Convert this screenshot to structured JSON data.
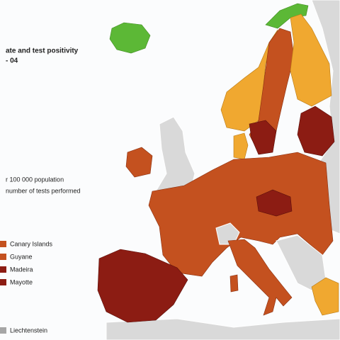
{
  "title": "ate and test positivity",
  "subtitle": "- 04",
  "legend": {
    "notes": [
      "r 100 000 population",
      "number of tests performed"
    ],
    "regions": [
      "Canary Islands",
      "Guyane",
      "Madeira",
      "Mayotte"
    ],
    "other": "Liechtenstein"
  }
}
